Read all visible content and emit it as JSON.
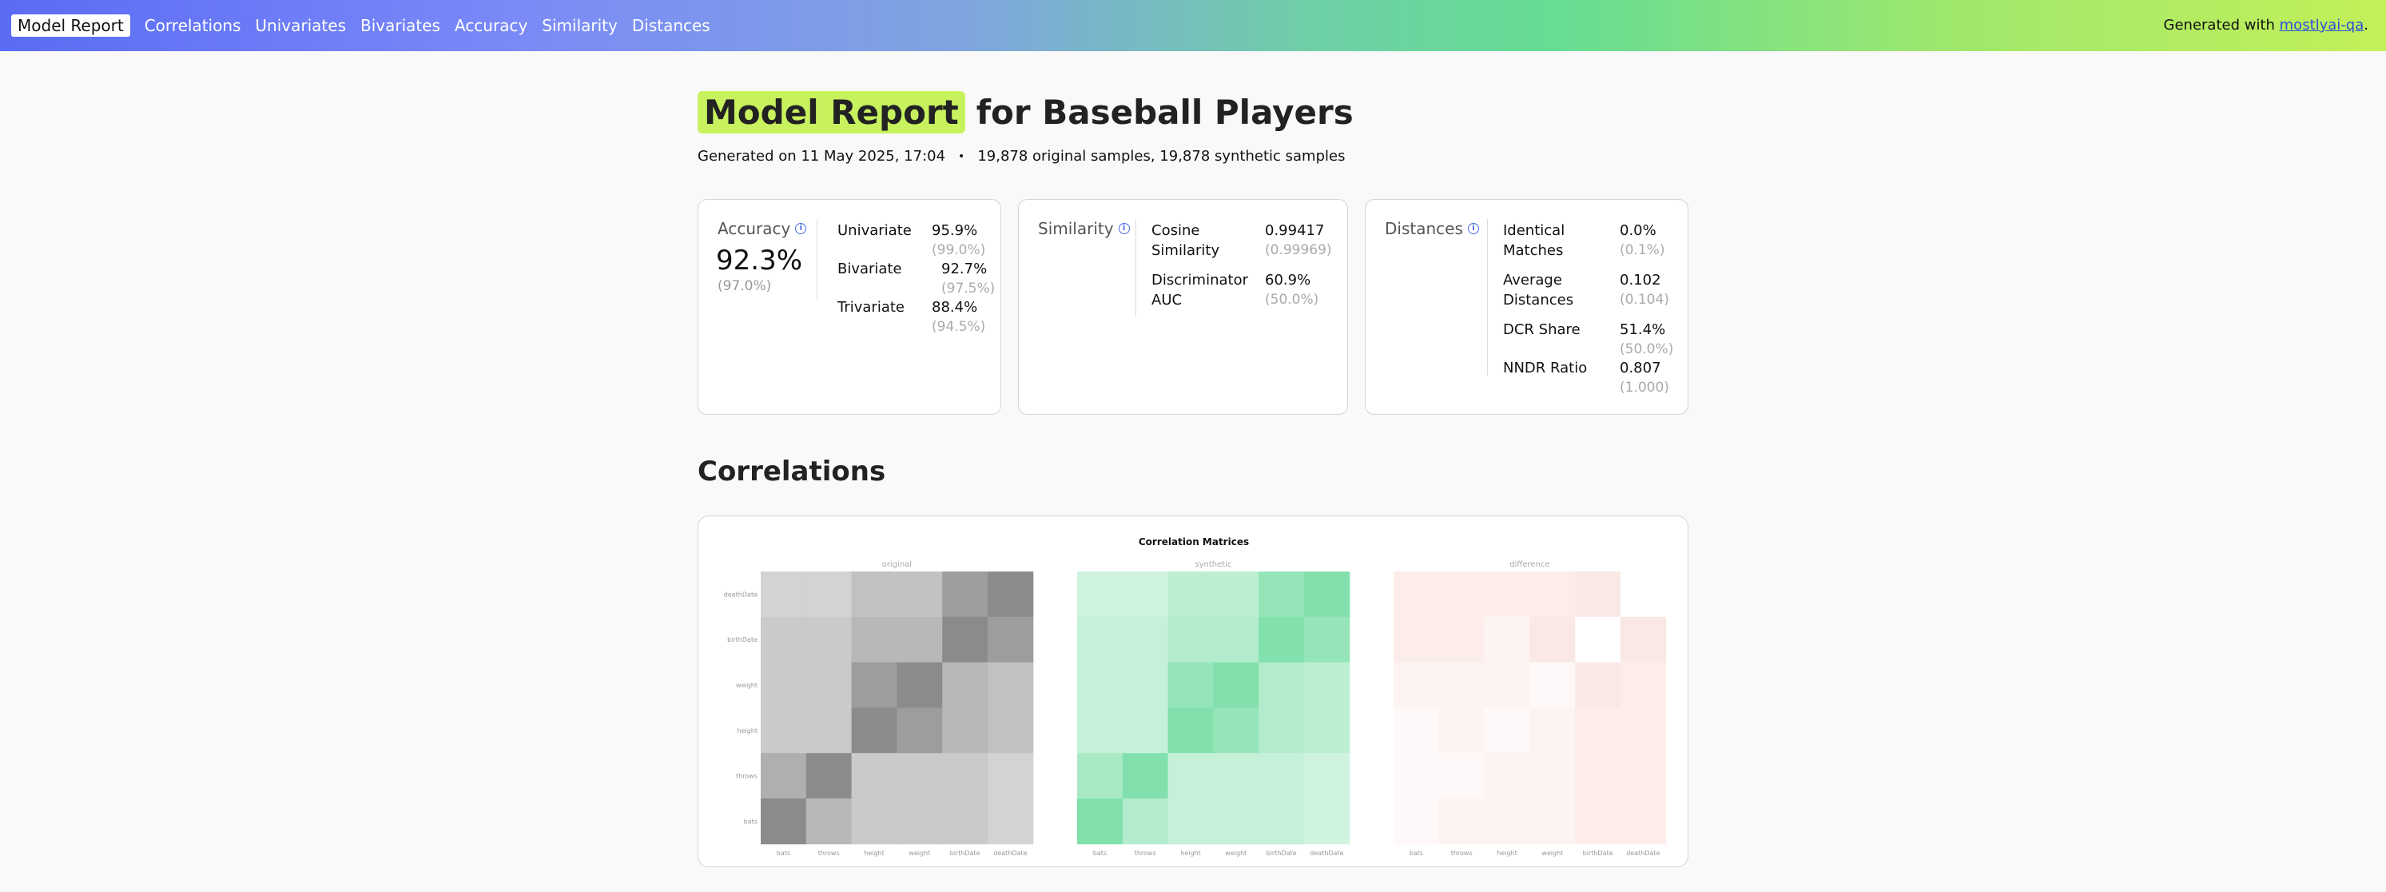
{
  "nav": {
    "brand": "Model Report",
    "links": [
      "Correlations",
      "Univariates",
      "Bivariates",
      "Accuracy",
      "Similarity",
      "Distances"
    ],
    "generated_with_prefix": "Generated with ",
    "generated_with_link": "mostlyai-qa",
    "generated_with_suffix": "."
  },
  "header": {
    "title_highlight": "Model Report",
    "title_rest": "for Baseball Players",
    "generated_on": "Generated on 11 May 2025, 17:04",
    "bullet": "•",
    "samples": "19,878 original samples, 19,878 synthetic samples"
  },
  "accuracy": {
    "label": "Accuracy",
    "value": "92.3%",
    "ref": "(97.0%)",
    "metrics": [
      {
        "name": "Univariate",
        "value": "95.9%",
        "ref": "(99.0%)"
      },
      {
        "name": "Bivariate",
        "value": "92.7%",
        "ref": "(97.5%)"
      },
      {
        "name": "Trivariate",
        "value": "88.4%",
        "ref": "(94.5%)"
      }
    ]
  },
  "similarity": {
    "label": "Similarity",
    "metrics": [
      {
        "name_line1": "Cosine",
        "name_line2": "Similarity",
        "value": "0.99417",
        "ref": "(0.99969)"
      },
      {
        "name_line1": "Discriminator",
        "name_line2": "AUC",
        "value": "60.9%",
        "ref": "(50.0%)"
      }
    ]
  },
  "distances": {
    "label": "Distances",
    "metrics": [
      {
        "name_line1": "Identical",
        "name_line2": "Matches",
        "value": "0.0%",
        "ref": "(0.1%)"
      },
      {
        "name_line1": "Average",
        "name_line2": "Distances",
        "value": "0.102",
        "ref": "(0.104)"
      },
      {
        "name_line1": "DCR Share",
        "name_line2": "",
        "value": "51.4%",
        "ref": "(50.0%)"
      },
      {
        "name_line1": "NNDR Ratio",
        "name_line2": "",
        "value": "0.807",
        "ref": "(1.000)"
      }
    ]
  },
  "correlations": {
    "section_title": "Correlations",
    "chart_title": "Correlation Matrices",
    "colors": {
      "original": "#4d4d4d",
      "synthetic": "#3fd07f",
      "difference": "#e88a7a"
    }
  },
  "chart_data": {
    "type": "heatmap",
    "title": "Correlation Matrices",
    "panels": [
      "original",
      "synthetic",
      "difference"
    ],
    "x_columns": [
      "bats",
      "throws",
      "height",
      "weight",
      "birthDate",
      "deathDate"
    ],
    "y_rows_top_to_bottom": [
      "deathDate",
      "birthDate",
      "weight",
      "height",
      "throws",
      "bats"
    ],
    "original": [
      [
        0.25,
        0.25,
        0.35,
        0.35,
        0.55,
        0.65
      ],
      [
        0.3,
        0.3,
        0.4,
        0.4,
        0.65,
        0.55
      ],
      [
        0.3,
        0.3,
        0.55,
        0.65,
        0.4,
        0.35
      ],
      [
        0.3,
        0.3,
        0.65,
        0.55,
        0.4,
        0.35
      ],
      [
        0.45,
        0.65,
        0.3,
        0.3,
        0.3,
        0.25
      ],
      [
        0.65,
        0.4,
        0.3,
        0.3,
        0.3,
        0.25
      ]
    ],
    "synthetic": [
      [
        0.25,
        0.25,
        0.35,
        0.35,
        0.55,
        0.65
      ],
      [
        0.3,
        0.3,
        0.4,
        0.4,
        0.65,
        0.55
      ],
      [
        0.3,
        0.3,
        0.55,
        0.65,
        0.4,
        0.35
      ],
      [
        0.3,
        0.3,
        0.65,
        0.55,
        0.4,
        0.35
      ],
      [
        0.45,
        0.65,
        0.3,
        0.3,
        0.3,
        0.25
      ],
      [
        0.65,
        0.4,
        0.3,
        0.3,
        0.3,
        0.25
      ]
    ],
    "difference": [
      [
        0.15,
        0.15,
        0.15,
        0.15,
        0.2,
        0.0
      ],
      [
        0.15,
        0.15,
        0.1,
        0.2,
        0.0,
        0.2
      ],
      [
        0.1,
        0.1,
        0.1,
        0.05,
        0.2,
        0.15
      ],
      [
        0.05,
        0.1,
        0.05,
        0.1,
        0.15,
        0.15
      ],
      [
        0.05,
        0.05,
        0.1,
        0.1,
        0.15,
        0.15
      ],
      [
        0.05,
        0.1,
        0.1,
        0.1,
        0.15,
        0.15
      ]
    ]
  }
}
